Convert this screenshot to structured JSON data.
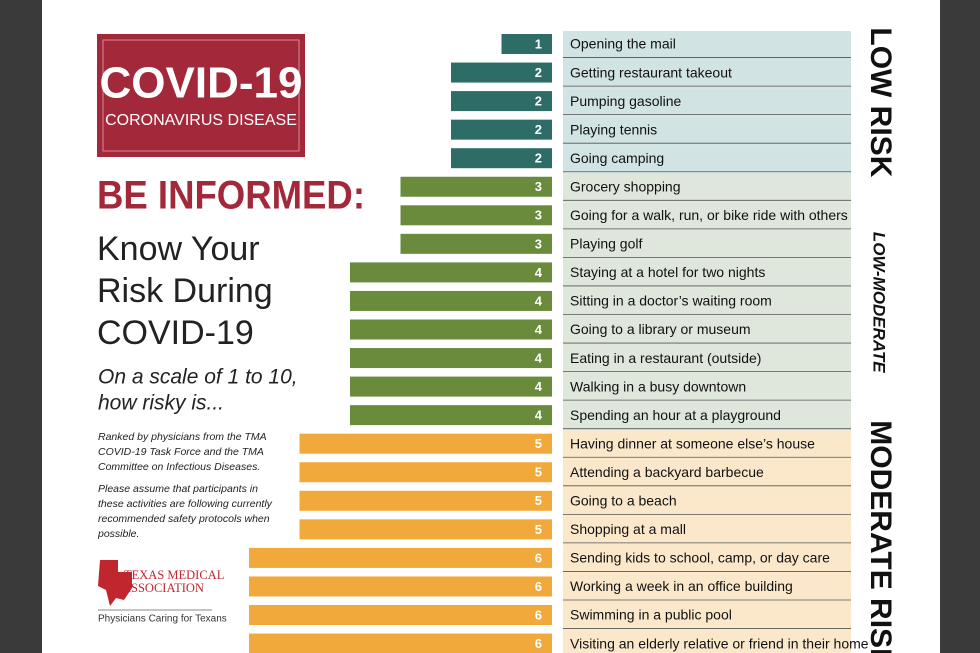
{
  "header": {
    "title": "COVID-19",
    "subtitle": "CORONAVIRUS DISEASE"
  },
  "headline": "BE INFORMED:",
  "subhead": [
    "Know Your",
    "Risk During",
    "COVID-19"
  ],
  "question": [
    "On a scale of 1 to 10,",
    "how risky is..."
  ],
  "notes": [
    [
      "Ranked by physicians from the TMA",
      "COVID-19 Task Force and the TMA",
      "Committee on Infectious Diseases."
    ],
    [
      "Please assume that  participants in",
      "these activities are following currently",
      "recommended safety protocols when",
      "possible."
    ]
  ],
  "logo": {
    "name": [
      "TEXAS MEDICAL",
      "ASSOCIATION"
    ],
    "tagline": "Physicians Caring for Texans"
  },
  "chart_data": {
    "type": "bar",
    "groups": [
      {
        "name": "LOW RISK",
        "color": "#2e6d67",
        "background": "#d2e3e3",
        "categories": [
          "Opening the mail",
          "Getting restaurant takeout",
          "Pumping gasoline",
          "Playing tennis",
          "Going camping"
        ],
        "values": [
          1,
          2,
          2,
          2,
          2
        ]
      },
      {
        "name": "LOW-MODERATE",
        "color": "#6a8a3c",
        "background": "#dfe6dc",
        "categories": [
          "Grocery shopping",
          "Going for a walk, run, or bike ride with others",
          "Playing golf",
          "Staying at a hotel for two nights",
          "Sitting in a doctor’s waiting room",
          "Going to a library or museum",
          "Eating in a restaurant (outside)",
          "Walking in a busy downtown",
          "Spending an hour at a playground"
        ],
        "values": [
          3,
          3,
          3,
          4,
          4,
          4,
          4,
          4,
          4
        ]
      },
      {
        "name": "MODERATE RISK",
        "color": "#f0a93a",
        "background": "#fbe8ca",
        "categories": [
          "Having dinner at someone else’s house",
          "Attending a backyard barbecue",
          "Going to a beach",
          "Shopping at a mall",
          "Sending kids to school, camp, or day care",
          "Working a week in an office building",
          "Swimming in a public pool",
          "Visiting an elderly relative or friend in their home"
        ],
        "values": [
          5,
          5,
          5,
          5,
          6,
          6,
          6,
          6
        ]
      }
    ]
  }
}
